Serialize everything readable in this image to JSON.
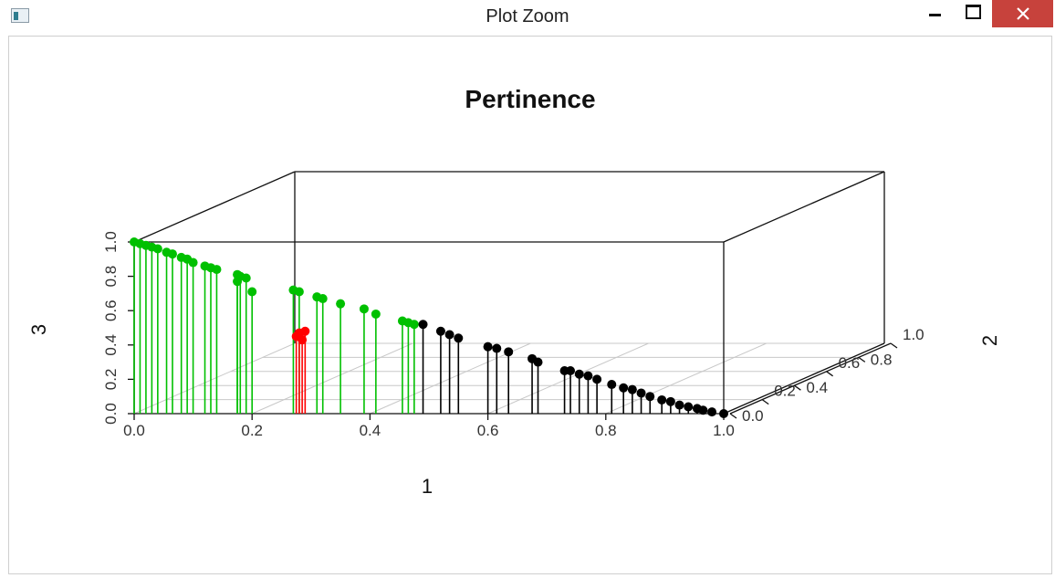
{
  "window": {
    "title": "Plot Zoom",
    "icon": "plot-window-icon",
    "controls": [
      "minimize-icon",
      "maximize-icon",
      "close-icon"
    ],
    "close_color": "#c7423c"
  },
  "chart_data": {
    "type": "scatter",
    "subtype": "3d-scatter-with-vertical-drop-lines",
    "title": "Pertinence",
    "xlabel": "1",
    "ylabel": "2",
    "zlabel": "3",
    "xlim": [
      0,
      1
    ],
    "ylim": [
      0,
      1
    ],
    "zlim": [
      0,
      1
    ],
    "x_ticks": [
      "0.0",
      "0.2",
      "0.4",
      "0.6",
      "0.8",
      "1.0"
    ],
    "y_ticks": [
      "0.0",
      "0.2",
      "0.4",
      "0.6",
      "0.8",
      "1.0"
    ],
    "z_ticks": [
      "0.0",
      "0.2",
      "0.4",
      "0.6",
      "0.8",
      "1.0"
    ],
    "grid": "bottom plane",
    "series": [
      {
        "color": "#00c000",
        "points": [
          [
            0.0,
            0.0,
            1.0
          ],
          [
            0.01,
            0.0,
            0.99
          ],
          [
            0.02,
            0.0,
            0.98
          ],
          [
            0.03,
            0.0,
            0.97
          ],
          [
            0.04,
            0.0,
            0.96
          ],
          [
            0.055,
            0.0,
            0.94
          ],
          [
            0.065,
            0.0,
            0.93
          ],
          [
            0.08,
            0.0,
            0.91
          ],
          [
            0.09,
            0.0,
            0.9
          ],
          [
            0.1,
            0.0,
            0.88
          ],
          [
            0.12,
            0.0,
            0.86
          ],
          [
            0.13,
            0.0,
            0.85
          ],
          [
            0.14,
            0.0,
            0.84
          ],
          [
            0.175,
            0.0,
            0.81
          ],
          [
            0.18,
            0.0,
            0.8
          ],
          [
            0.19,
            0.0,
            0.79
          ],
          [
            0.175,
            0.0,
            0.77
          ],
          [
            0.2,
            0.0,
            0.71
          ],
          [
            0.27,
            0.0,
            0.72
          ],
          [
            0.28,
            0.0,
            0.71
          ],
          [
            0.31,
            0.0,
            0.68
          ],
          [
            0.32,
            0.0,
            0.67
          ],
          [
            0.35,
            0.0,
            0.64
          ],
          [
            0.39,
            0.0,
            0.61
          ],
          [
            0.41,
            0.0,
            0.58
          ],
          [
            0.455,
            0.0,
            0.54
          ],
          [
            0.465,
            0.0,
            0.53
          ],
          [
            0.475,
            0.0,
            0.52
          ]
        ]
      },
      {
        "color": "#ff0000",
        "points": [
          [
            0.275,
            0.0,
            0.45
          ],
          [
            0.28,
            0.0,
            0.47
          ],
          [
            0.285,
            0.0,
            0.43
          ],
          [
            0.29,
            0.0,
            0.48
          ]
        ]
      },
      {
        "color": "#000000",
        "points": [
          [
            0.49,
            0.0,
            0.52
          ],
          [
            0.52,
            0.0,
            0.48
          ],
          [
            0.535,
            0.0,
            0.46
          ],
          [
            0.55,
            0.0,
            0.44
          ],
          [
            0.6,
            0.0,
            0.39
          ],
          [
            0.615,
            0.0,
            0.38
          ],
          [
            0.635,
            0.0,
            0.36
          ],
          [
            0.675,
            0.0,
            0.32
          ],
          [
            0.685,
            0.0,
            0.3
          ],
          [
            0.73,
            0.0,
            0.25
          ],
          [
            0.74,
            0.0,
            0.25
          ],
          [
            0.755,
            0.0,
            0.23
          ],
          [
            0.77,
            0.0,
            0.22
          ],
          [
            0.785,
            0.0,
            0.2
          ],
          [
            0.81,
            0.0,
            0.17
          ],
          [
            0.83,
            0.0,
            0.15
          ],
          [
            0.845,
            0.0,
            0.14
          ],
          [
            0.86,
            0.0,
            0.12
          ],
          [
            0.875,
            0.0,
            0.1
          ],
          [
            0.895,
            0.0,
            0.08
          ],
          [
            0.91,
            0.0,
            0.07
          ],
          [
            0.925,
            0.0,
            0.05
          ],
          [
            0.94,
            0.0,
            0.04
          ],
          [
            0.955,
            0.0,
            0.03
          ],
          [
            0.965,
            0.0,
            0.02
          ],
          [
            0.98,
            0.0,
            0.01
          ],
          [
            1.0,
            0.0,
            0.0
          ]
        ]
      }
    ]
  }
}
